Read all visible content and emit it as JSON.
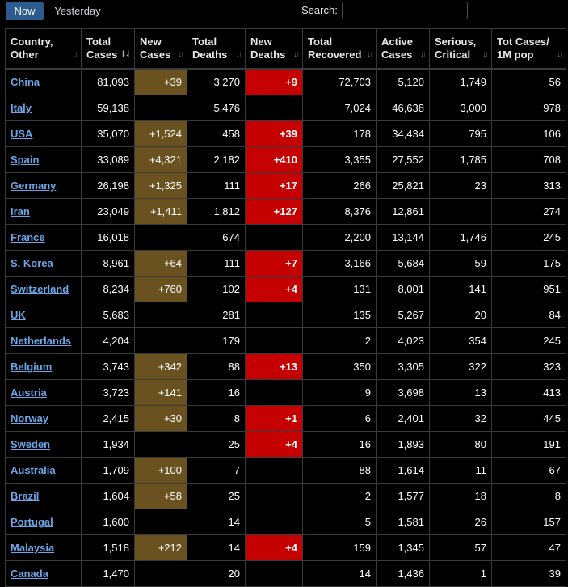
{
  "tabs": [
    {
      "label": "Now",
      "active": true
    },
    {
      "label": "Yesterday",
      "active": false
    }
  ],
  "search": {
    "label": "Search:",
    "value": ""
  },
  "columns": [
    {
      "line1": "Country,",
      "line2": "Other"
    },
    {
      "line1": "Total",
      "line2": "Cases"
    },
    {
      "line1": "New",
      "line2": "Cases"
    },
    {
      "line1": "Total",
      "line2": "Deaths"
    },
    {
      "line1": "New",
      "line2": "Deaths"
    },
    {
      "line1": "Total",
      "line2": "Recovered"
    },
    {
      "line1": "Active",
      "line2": "Cases"
    },
    {
      "line1": "Serious,",
      "line2": "Critical"
    },
    {
      "line1": "Tot Cases/",
      "line2": "1M pop"
    }
  ],
  "sort_icons": {
    "sorted": "⇂⇃",
    "unsorted": "↓↑"
  },
  "colors": {
    "new_cases_bg": "#695220",
    "new_deaths_bg": "#c40000",
    "link": "#6aa6e8",
    "tab_active": "#2b5b8f"
  },
  "rows": [
    {
      "country": "China",
      "total_cases": "81,093",
      "new_cases": "+39",
      "total_deaths": "3,270",
      "new_deaths": "+9",
      "total_recovered": "72,703",
      "active_cases": "5,120",
      "serious": "1,749",
      "per_million": "56"
    },
    {
      "country": "Italy",
      "total_cases": "59,138",
      "new_cases": "",
      "total_deaths": "5,476",
      "new_deaths": "",
      "total_recovered": "7,024",
      "active_cases": "46,638",
      "serious": "3,000",
      "per_million": "978"
    },
    {
      "country": "USA",
      "total_cases": "35,070",
      "new_cases": "+1,524",
      "total_deaths": "458",
      "new_deaths": "+39",
      "total_recovered": "178",
      "active_cases": "34,434",
      "serious": "795",
      "per_million": "106"
    },
    {
      "country": "Spain",
      "total_cases": "33,089",
      "new_cases": "+4,321",
      "total_deaths": "2,182",
      "new_deaths": "+410",
      "total_recovered": "3,355",
      "active_cases": "27,552",
      "serious": "1,785",
      "per_million": "708"
    },
    {
      "country": "Germany",
      "total_cases": "26,198",
      "new_cases": "+1,325",
      "total_deaths": "111",
      "new_deaths": "+17",
      "total_recovered": "266",
      "active_cases": "25,821",
      "serious": "23",
      "per_million": "313"
    },
    {
      "country": "Iran",
      "total_cases": "23,049",
      "new_cases": "+1,411",
      "total_deaths": "1,812",
      "new_deaths": "+127",
      "total_recovered": "8,376",
      "active_cases": "12,861",
      "serious": "",
      "per_million": "274"
    },
    {
      "country": "France",
      "total_cases": "16,018",
      "new_cases": "",
      "total_deaths": "674",
      "new_deaths": "",
      "total_recovered": "2,200",
      "active_cases": "13,144",
      "serious": "1,746",
      "per_million": "245"
    },
    {
      "country": "S. Korea",
      "total_cases": "8,961",
      "new_cases": "+64",
      "total_deaths": "111",
      "new_deaths": "+7",
      "total_recovered": "3,166",
      "active_cases": "5,684",
      "serious": "59",
      "per_million": "175"
    },
    {
      "country": "Switzerland",
      "total_cases": "8,234",
      "new_cases": "+760",
      "total_deaths": "102",
      "new_deaths": "+4",
      "total_recovered": "131",
      "active_cases": "8,001",
      "serious": "141",
      "per_million": "951"
    },
    {
      "country": "UK",
      "total_cases": "5,683",
      "new_cases": "",
      "total_deaths": "281",
      "new_deaths": "",
      "total_recovered": "135",
      "active_cases": "5,267",
      "serious": "20",
      "per_million": "84"
    },
    {
      "country": "Netherlands",
      "total_cases": "4,204",
      "new_cases": "",
      "total_deaths": "179",
      "new_deaths": "",
      "total_recovered": "2",
      "active_cases": "4,023",
      "serious": "354",
      "per_million": "245"
    },
    {
      "country": "Belgium",
      "total_cases": "3,743",
      "new_cases": "+342",
      "total_deaths": "88",
      "new_deaths": "+13",
      "total_recovered": "350",
      "active_cases": "3,305",
      "serious": "322",
      "per_million": "323"
    },
    {
      "country": "Austria",
      "total_cases": "3,723",
      "new_cases": "+141",
      "total_deaths": "16",
      "new_deaths": "",
      "total_recovered": "9",
      "active_cases": "3,698",
      "serious": "13",
      "per_million": "413"
    },
    {
      "country": "Norway",
      "total_cases": "2,415",
      "new_cases": "+30",
      "total_deaths": "8",
      "new_deaths": "+1",
      "total_recovered": "6",
      "active_cases": "2,401",
      "serious": "32",
      "per_million": "445"
    },
    {
      "country": "Sweden",
      "total_cases": "1,934",
      "new_cases": "",
      "total_deaths": "25",
      "new_deaths": "+4",
      "total_recovered": "16",
      "active_cases": "1,893",
      "serious": "80",
      "per_million": "191"
    },
    {
      "country": "Australia",
      "total_cases": "1,709",
      "new_cases": "+100",
      "total_deaths": "7",
      "new_deaths": "",
      "total_recovered": "88",
      "active_cases": "1,614",
      "serious": "11",
      "per_million": "67"
    },
    {
      "country": "Brazil",
      "total_cases": "1,604",
      "new_cases": "+58",
      "total_deaths": "25",
      "new_deaths": "",
      "total_recovered": "2",
      "active_cases": "1,577",
      "serious": "18",
      "per_million": "8"
    },
    {
      "country": "Portugal",
      "total_cases": "1,600",
      "new_cases": "",
      "total_deaths": "14",
      "new_deaths": "",
      "total_recovered": "5",
      "active_cases": "1,581",
      "serious": "26",
      "per_million": "157"
    },
    {
      "country": "Malaysia",
      "total_cases": "1,518",
      "new_cases": "+212",
      "total_deaths": "14",
      "new_deaths": "+4",
      "total_recovered": "159",
      "active_cases": "1,345",
      "serious": "57",
      "per_million": "47"
    },
    {
      "country": "Canada",
      "total_cases": "1,470",
      "new_cases": "",
      "total_deaths": "20",
      "new_deaths": "",
      "total_recovered": "14",
      "active_cases": "1,436",
      "serious": "1",
      "per_million": "39"
    }
  ]
}
